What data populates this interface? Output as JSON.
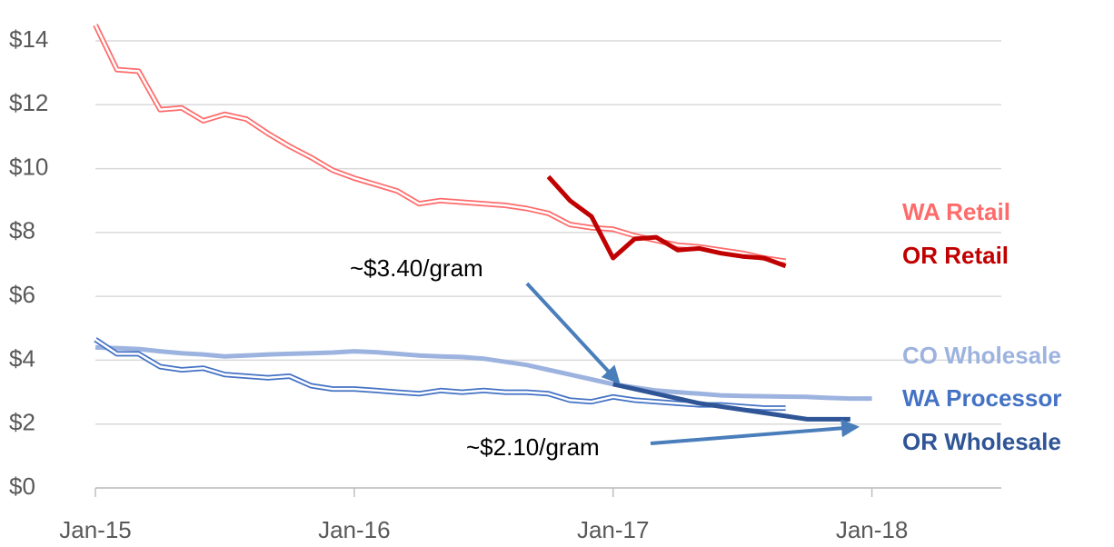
{
  "chart_data": {
    "type": "line",
    "categories": [
      "Jan-15",
      null,
      null,
      null,
      null,
      null,
      null,
      null,
      null,
      null,
      null,
      null,
      "Jan-16",
      null,
      null,
      null,
      null,
      null,
      null,
      null,
      null,
      null,
      null,
      null,
      "Jan-17",
      null,
      null,
      null,
      null,
      null,
      null,
      null,
      null,
      null,
      null,
      null,
      "Jan-18",
      null,
      null,
      null,
      null,
      null,
      null
    ],
    "series": [
      {
        "name": "WA Retail",
        "color": "#ff6b6b",
        "style": "double",
        "values": [
          14.5,
          13.1,
          13.05,
          11.85,
          11.9,
          11.5,
          11.7,
          11.55,
          11.1,
          10.7,
          10.35,
          9.95,
          9.7,
          9.5,
          9.3,
          8.9,
          9.0,
          8.95,
          8.9,
          8.85,
          8.75,
          8.6,
          8.25,
          8.15,
          8.1,
          7.9,
          7.75,
          7.6,
          7.55,
          7.45,
          7.35,
          7.2,
          7.1,
          null,
          null,
          null,
          null,
          null,
          null,
          null,
          null,
          null,
          null
        ]
      },
      {
        "name": "OR Retail",
        "color": "#c00000",
        "style": "solid",
        "values": [
          null,
          null,
          null,
          null,
          null,
          null,
          null,
          null,
          null,
          null,
          null,
          null,
          null,
          null,
          null,
          null,
          null,
          null,
          null,
          null,
          null,
          9.75,
          9.0,
          8.5,
          7.2,
          7.8,
          7.85,
          7.45,
          7.5,
          7.35,
          7.25,
          7.2,
          6.95,
          null,
          null,
          null,
          null,
          null,
          null,
          null,
          null,
          null,
          null
        ]
      },
      {
        "name": "CO Wholesale",
        "color": "#9db3df",
        "style": "solid",
        "values": [
          4.4,
          4.38,
          4.35,
          4.28,
          4.22,
          4.18,
          4.12,
          4.15,
          4.18,
          4.2,
          4.22,
          4.24,
          4.28,
          4.25,
          4.2,
          4.15,
          4.12,
          4.1,
          4.05,
          3.95,
          3.85,
          3.7,
          3.55,
          3.4,
          3.25,
          3.15,
          3.05,
          3.0,
          2.95,
          2.9,
          2.88,
          2.87,
          2.86,
          2.85,
          2.82,
          2.8,
          2.8,
          null,
          null,
          null,
          null,
          null,
          null
        ]
      },
      {
        "name": "WA Processor",
        "color": "#4472c4",
        "style": "double",
        "values": [
          4.65,
          4.2,
          4.2,
          3.8,
          3.7,
          3.75,
          3.55,
          3.5,
          3.45,
          3.5,
          3.2,
          3.1,
          3.1,
          3.05,
          3.0,
          2.95,
          3.05,
          3.0,
          3.05,
          3.0,
          3.0,
          2.95,
          2.75,
          2.7,
          2.85,
          2.75,
          2.7,
          2.65,
          2.6,
          2.6,
          2.55,
          2.5,
          2.5,
          null,
          null,
          null,
          null,
          null,
          null,
          null,
          null,
          null,
          null
        ]
      },
      {
        "name": "OR Wholesale",
        "color": "#2f5597",
        "style": "solid",
        "values": [
          null,
          null,
          null,
          null,
          null,
          null,
          null,
          null,
          null,
          null,
          null,
          null,
          null,
          null,
          null,
          null,
          null,
          null,
          null,
          null,
          null,
          null,
          null,
          null,
          3.25,
          3.1,
          2.95,
          2.8,
          2.65,
          2.55,
          2.45,
          2.35,
          2.25,
          2.15,
          2.15,
          2.15,
          null,
          null,
          null,
          null,
          null,
          null,
          null
        ]
      }
    ],
    "ylim": [
      0,
      14
    ],
    "yticks": [
      {
        "value": 0,
        "label": "$0"
      },
      {
        "value": 2,
        "label": "$2"
      },
      {
        "value": 4,
        "label": "$4"
      },
      {
        "value": 6,
        "label": "$6"
      },
      {
        "value": 8,
        "label": "$8"
      },
      {
        "value": 10,
        "label": "$10"
      },
      {
        "value": 12,
        "label": "$12"
      },
      {
        "value": 14,
        "label": "$14"
      }
    ],
    "grid": true,
    "annotations": [
      "~$3.40/gram",
      "~$2.10/gram"
    ]
  }
}
